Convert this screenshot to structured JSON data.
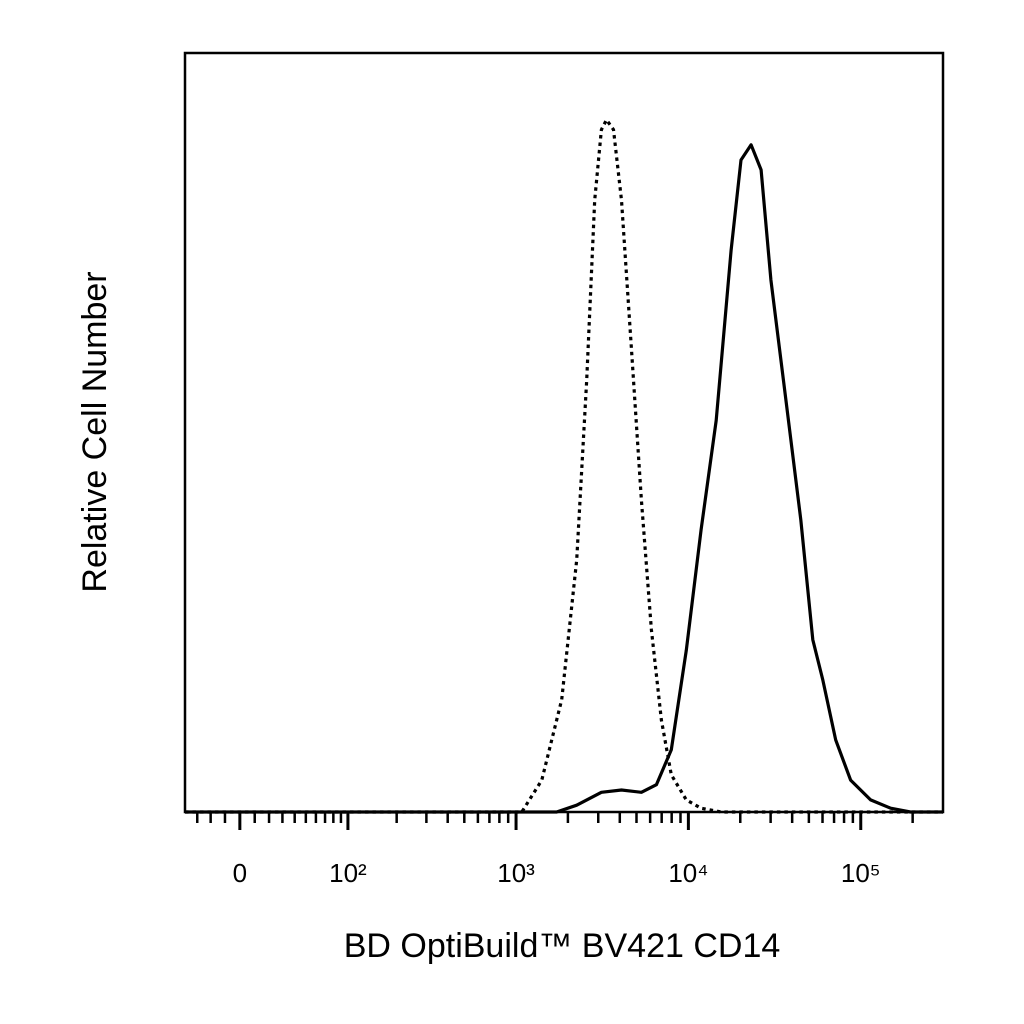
{
  "chart_data": {
    "type": "histogram-overlay",
    "xlabel": "BD OptiBuild™ BV421 CD14",
    "ylabel": "Relative Cell Number",
    "xscale": "biexponential",
    "xlim": [
      -40,
      300000
    ],
    "ylim": [
      0,
      100
    ],
    "xticks": [
      0,
      {
        "value": 100,
        "label": "10²"
      },
      {
        "value": 1000,
        "label": "10³"
      },
      {
        "value": 10000,
        "label": "10⁴"
      },
      {
        "value": 100000,
        "label": "10⁵"
      }
    ],
    "xminorticks": [
      -30,
      -20,
      -10,
      10,
      20,
      30,
      40,
      50,
      60,
      70,
      80,
      90,
      200,
      300,
      400,
      500,
      600,
      700,
      800,
      900,
      2000,
      3000,
      4000,
      5000,
      6000,
      7000,
      8000,
      9000,
      20000,
      30000,
      40000,
      50000,
      60000,
      70000,
      80000,
      90000,
      200000
    ],
    "series": [
      {
        "color": "#000000",
        "dash": "dotted",
        "x": [
          -40,
          1080,
          1410,
          1840,
          2250,
          2570,
          2860,
          3130,
          3350,
          3680,
          4090,
          4680,
          5340,
          6100,
          6970,
          7960,
          9730,
          11850,
          15500,
          300000
        ],
        "values": [
          0,
          0,
          4.2,
          14.8,
          33.2,
          56.9,
          80.6,
          89.9,
          91.2,
          89.9,
          80.6,
          60.9,
          41.1,
          24.0,
          12.1,
          4.9,
          1.6,
          0.5,
          0,
          0
        ]
      },
      {
        "color": "#000000",
        "dash": "solid",
        "x": [
          -40,
          1720,
          2250,
          3130,
          4090,
          5340,
          6520,
          7960,
          9730,
          11850,
          14500,
          17700,
          20200,
          23100,
          26400,
          30100,
          36800,
          44900,
          52700,
          60200,
          71600,
          87300,
          114000,
          149000,
          194000,
          300000
        ],
        "values": [
          0,
          0,
          0.9,
          2.6,
          2.9,
          2.6,
          3.6,
          8.2,
          21.3,
          37.2,
          51.6,
          74.0,
          85.9,
          87.9,
          84.6,
          70.1,
          54.3,
          38.5,
          22.7,
          17.4,
          9.5,
          4.2,
          1.6,
          0.5,
          0,
          0
        ]
      }
    ]
  }
}
